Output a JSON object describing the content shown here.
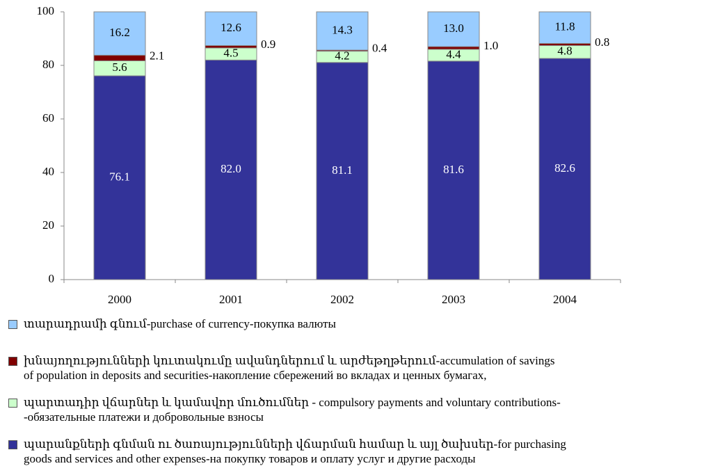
{
  "chart_data": {
    "type": "stacked_bar",
    "categories": [
      "2000",
      "2001",
      "2002",
      "2003",
      "2004"
    ],
    "ylim": [
      0,
      100
    ],
    "yticks": [
      0,
      20,
      40,
      60,
      80,
      100
    ],
    "series": [
      {
        "name": "պարանքների գնման ու ծառայությունների վճարման համար և այլ  ծախսեր-for purchasing\ngoods and services and other expenses-на покупку товаров и оплату услуг и другие расходы",
        "color": "#333399",
        "label_color": "#ffffff",
        "values": [
          76.1,
          82.0,
          81.1,
          81.6,
          82.6
        ],
        "value_labels": [
          "76.1",
          "82.0",
          "81.1",
          "81.6",
          "82.6"
        ]
      },
      {
        "name": "պարտադիր վճարներ և կամավոր մուծումներ - compulsory payments  and voluntary contributions-\n-обязательные платежи и добровольные взносы",
        "color": "#ccffcc",
        "label_color": "#000000",
        "values": [
          5.6,
          4.5,
          4.2,
          4.4,
          4.8
        ],
        "value_labels": [
          "5.6",
          "4.5",
          "4.2",
          "4.4",
          "4.8"
        ]
      },
      {
        "name": "խնայողությունների կուտակումը  ավանդներում և արժեթղթերում-accumulation of savings\nof  population in deposits and securities-накопление сбережений во вкладах и ценных бумагах,",
        "color": "#800000",
        "label_color": "#000000",
        "values": [
          2.1,
          0.9,
          0.4,
          1.0,
          0.8
        ],
        "value_labels": [
          "2.1",
          "0.9",
          "0.4",
          "1.0",
          "0.8"
        ]
      },
      {
        "name": "տարադրամի գնում-purchase  of currency-покупка валюты",
        "color": "#99ccff",
        "label_color": "#000000",
        "values": [
          16.2,
          12.6,
          14.3,
          13.0,
          11.8
        ],
        "value_labels": [
          "16.2",
          "12.6",
          "14.3",
          "13.0",
          "11.8"
        ]
      }
    ]
  }
}
